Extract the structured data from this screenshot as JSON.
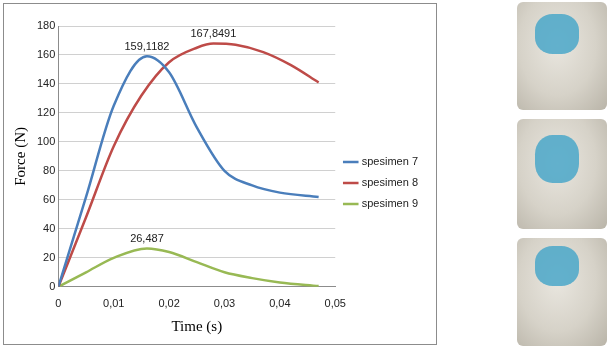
{
  "chart_data": {
    "type": "line",
    "x_label": "Time (s)",
    "y_label": "Force (N)",
    "xlim": [
      0,
      0.05
    ],
    "xticks": [
      0,
      {
        "value": 0.01,
        "label": "0,01"
      },
      {
        "value": 0.02,
        "label": "0,02"
      },
      {
        "value": 0.03,
        "label": "0,03"
      },
      {
        "value": 0.04,
        "label": "0,04"
      },
      {
        "value": 0.05,
        "label": "0,05"
      }
    ],
    "ylim": [
      0,
      180
    ],
    "yticks": [
      0,
      20,
      40,
      60,
      80,
      100,
      120,
      140,
      160,
      180
    ],
    "grid": true,
    "legend": "right",
    "series": [
      {
        "name": "spesimen 7",
        "color": "#4a7ebb",
        "x": [
          0,
          0.005,
          0.01,
          0.016,
          0.02,
          0.025,
          0.03,
          0.035,
          0.04,
          0.047
        ],
        "values": [
          0,
          62,
          125,
          159.1182,
          148,
          110,
          80,
          70,
          65,
          62
        ]
      },
      {
        "name": "spesimen 8",
        "color": "#be4b48",
        "x": [
          0,
          0.005,
          0.01,
          0.015,
          0.02,
          0.025,
          0.028,
          0.032,
          0.037,
          0.042,
          0.047
        ],
        "values": [
          0,
          48,
          97,
          132,
          155,
          165,
          167.8491,
          167,
          162,
          153,
          141
        ]
      },
      {
        "name": "spesimen 9",
        "color": "#98b954",
        "x": [
          0,
          0.005,
          0.01,
          0.016,
          0.02,
          0.025,
          0.03,
          0.035,
          0.04,
          0.047
        ],
        "values": [
          0,
          10,
          20,
          26.487,
          24,
          17,
          10,
          6,
          3,
          0.5
        ]
      }
    ],
    "annotations": [
      {
        "text": "159,1182",
        "x": 0.016,
        "y": 159.1182
      },
      {
        "text": "167,8491",
        "x": 0.028,
        "y": 167.8491
      },
      {
        "text": "26,487",
        "x": 0.016,
        "y": 26.487
      }
    ]
  }
}
